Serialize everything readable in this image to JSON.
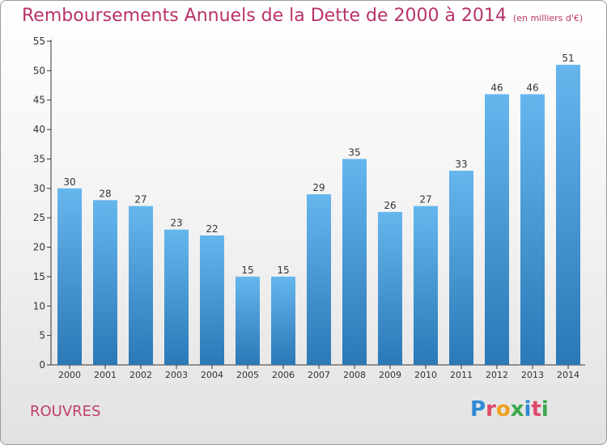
{
  "title": "Remboursements Annuels de la Dette de 2000 à 2014",
  "subtitle": "(en milliers d'€)",
  "place": "ROUVRES",
  "logo": {
    "text": "Proxiti",
    "letter_colors": [
      "#2f8ad6",
      "#e04a6a",
      "#f0a020",
      "#3aa84a",
      "#2f8ad6",
      "#e04a6a",
      "#3aa84a"
    ]
  },
  "colors": {
    "bar_top": "#66b6ee",
    "bar_bottom": "#2a78b6",
    "title": "#b8336a",
    "axis": "#333333"
  },
  "chart_data": {
    "type": "bar",
    "title": "Remboursements Annuels de la Dette de 2000 à 2014",
    "subtitle": "(en milliers d'€)",
    "xlabel": "",
    "ylabel": "",
    "ylim": [
      0,
      55
    ],
    "yticks": [
      0,
      5,
      10,
      15,
      20,
      25,
      30,
      35,
      40,
      45,
      50,
      55
    ],
    "grid": false,
    "categories": [
      "2000",
      "2001",
      "2002",
      "2003",
      "2004",
      "2005",
      "2006",
      "2007",
      "2008",
      "2009",
      "2010",
      "2011",
      "2012",
      "2013",
      "2014"
    ],
    "values": [
      30,
      28,
      27,
      23,
      22,
      15,
      15,
      29,
      35,
      26,
      27,
      33,
      46,
      46,
      51
    ]
  }
}
